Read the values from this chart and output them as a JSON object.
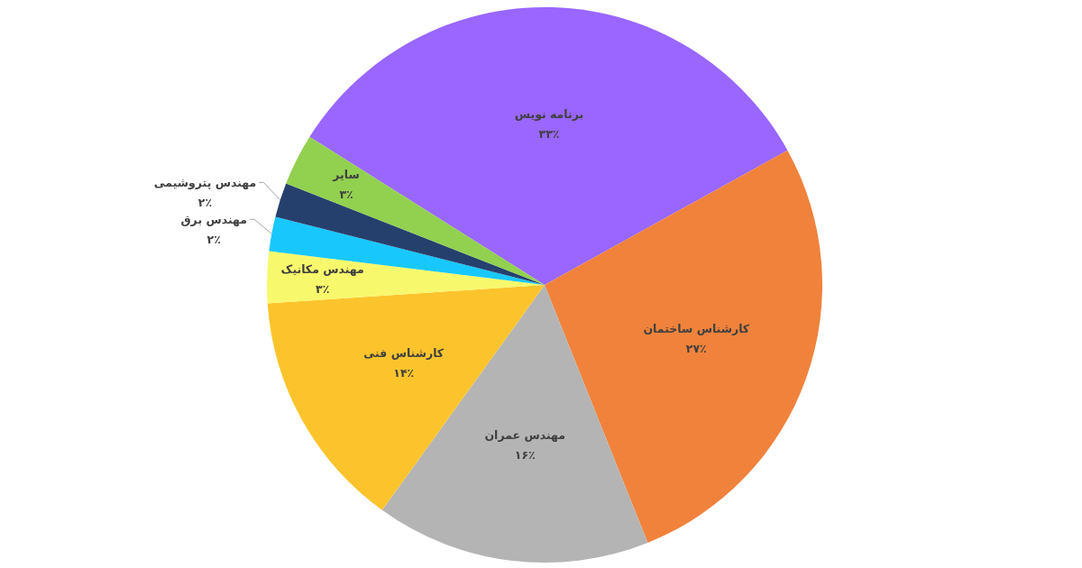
{
  "chart_data": {
    "type": "pie",
    "categories": [
      "برنامه نویس",
      "کارشناس ساختمان",
      "مهندس عمران",
      "کارشناس فنی",
      "مهندس مکانیک",
      "مهندس برق",
      "مهندس پتروشیمی",
      "سایر"
    ],
    "values": [
      33,
      27,
      16,
      14,
      3,
      2,
      2,
      3
    ],
    "colors": [
      "#9966ff",
      "#f0823c",
      "#b4b4b4",
      "#fcc42c",
      "#f8f86c",
      "#18c8fc",
      "#26406e",
      "#92d050"
    ],
    "value_labels": [
      "۳۳٪",
      "۲۷٪",
      "۱۶٪",
      "۱۴٪",
      "۳٪",
      "۲٪",
      "۲٪",
      "۳٪"
    ]
  }
}
